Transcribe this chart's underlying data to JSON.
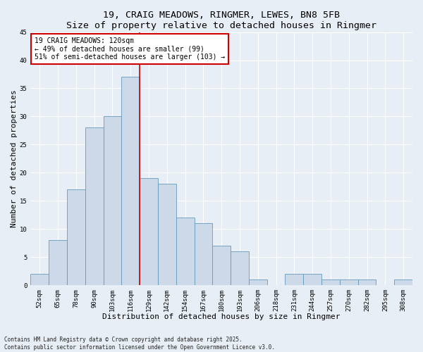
{
  "title": "19, CRAIG MEADOWS, RINGMER, LEWES, BN8 5FB",
  "subtitle": "Size of property relative to detached houses in Ringmer",
  "xlabel": "Distribution of detached houses by size in Ringmer",
  "ylabel": "Number of detached properties",
  "bar_color": "#ccd9e8",
  "bar_edge_color": "#6699bb",
  "background_color": "#e8eef5",
  "grid_color": "#ffffff",
  "categories": [
    "52sqm",
    "65sqm",
    "78sqm",
    "90sqm",
    "103sqm",
    "116sqm",
    "129sqm",
    "142sqm",
    "154sqm",
    "167sqm",
    "180sqm",
    "193sqm",
    "206sqm",
    "218sqm",
    "231sqm",
    "244sqm",
    "257sqm",
    "270sqm",
    "282sqm",
    "295sqm",
    "308sqm"
  ],
  "values": [
    2,
    8,
    17,
    28,
    30,
    37,
    19,
    18,
    12,
    11,
    7,
    6,
    1,
    0,
    2,
    2,
    1,
    1,
    1,
    0,
    1
  ],
  "vline_x": 5.5,
  "vline_color": "#cc0000",
  "annotation_text": "19 CRAIG MEADOWS: 120sqm\n← 49% of detached houses are smaller (99)\n51% of semi-detached houses are larger (103) →",
  "annotation_box_color": "#ffffff",
  "annotation_box_edge": "#cc0000",
  "ylim": [
    0,
    45
  ],
  "yticks": [
    0,
    5,
    10,
    15,
    20,
    25,
    30,
    35,
    40,
    45
  ],
  "footer": "Contains HM Land Registry data © Crown copyright and database right 2025.\nContains public sector information licensed under the Open Government Licence v3.0.",
  "title_fontsize": 9.5,
  "axis_label_fontsize": 8,
  "tick_fontsize": 6.5,
  "annotation_fontsize": 7,
  "footer_fontsize": 5.5
}
